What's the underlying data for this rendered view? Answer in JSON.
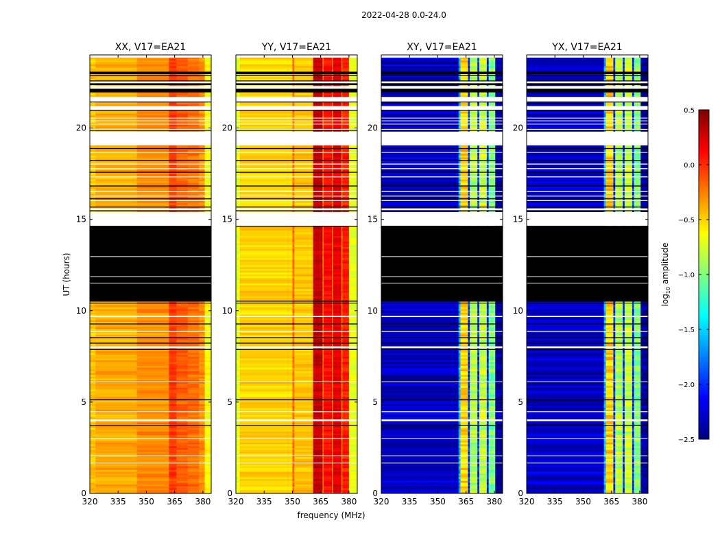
{
  "chart_data": {
    "type": "heatmap",
    "title": "2022-04-28 0.0-24.0",
    "xlabel": "frequency (MHz)",
    "ylabel": "UT (hours)",
    "xlim": [
      320,
      384.4
    ],
    "ylim": [
      0,
      24
    ],
    "xticks": [
      320,
      335,
      350,
      365,
      380
    ],
    "xtick_labels": [
      "320",
      "335",
      "350",
      "365",
      "380"
    ],
    "yticks": [
      0,
      5,
      10,
      15,
      20
    ],
    "ytick_labels": [
      "0",
      "5",
      "10",
      "15",
      "20"
    ],
    "colorbar": {
      "label_prefix": "log",
      "label_subscript": "10",
      "label_suffix": " amplitude",
      "range": [
        -2.5,
        0.5
      ],
      "colormap": "jet",
      "ticks": [
        0.5,
        0.0,
        -0.5,
        -1.0,
        -1.5,
        -2.0,
        -2.5
      ],
      "tick_labels": [
        "0.5",
        "0.0",
        "−0.5",
        "−1.0",
        "−1.5",
        "−2.0",
        "−2.5"
      ]
    },
    "time_mask": {
      "flagged": [
        [
          22.95,
          23.08
        ],
        [
          22.85,
          22.9
        ],
        [
          22.55,
          22.6
        ],
        [
          22.35,
          22.45
        ],
        [
          21.95,
          22.15
        ],
        [
          21.4,
          21.45
        ],
        [
          20.95,
          21.0
        ],
        [
          19.85,
          19.9
        ],
        [
          18.85,
          18.9
        ],
        [
          18.2,
          18.25
        ],
        [
          17.55,
          17.6
        ],
        [
          16.8,
          16.85
        ],
        [
          16.1,
          16.15
        ],
        [
          15.65,
          15.7
        ],
        [
          15.45,
          15.5
        ],
        [
          14.6,
          14.65
        ],
        [
          10.5,
          10.55
        ],
        [
          10.4,
          10.43
        ],
        [
          9.25,
          9.3
        ],
        [
          8.5,
          8.55
        ],
        [
          8.2,
          8.25
        ],
        [
          7.85,
          7.9
        ],
        [
          5.1,
          5.15
        ],
        [
          3.7,
          3.75
        ]
      ],
      "nodata": [
        [
          23.85,
          24
        ],
        [
          22.45,
          22.55
        ],
        [
          22.15,
          22.3
        ],
        [
          21.45,
          21.7
        ],
        [
          21.0,
          21.2
        ],
        [
          20.2,
          20.23
        ],
        [
          20.38,
          20.41
        ],
        [
          20.53,
          20.56
        ],
        [
          19.9,
          19.95
        ],
        [
          19.05,
          19.8
        ],
        [
          18.65,
          18.68
        ],
        [
          18.0,
          18.05
        ],
        [
          17.75,
          17.8
        ],
        [
          17.3,
          17.35
        ],
        [
          16.5,
          16.55
        ],
        [
          16.25,
          16.3
        ],
        [
          16.0,
          16.05
        ],
        [
          15.5,
          15.6
        ],
        [
          14.65,
          15.4
        ],
        [
          9.65,
          9.72
        ],
        [
          8.85,
          8.9
        ],
        [
          7.95,
          8.05
        ],
        [
          6.1,
          6.13
        ],
        [
          4.45,
          4.5
        ],
        [
          3.95,
          4.05
        ],
        [
          3.0,
          3.03
        ],
        [
          2.05,
          2.08
        ],
        [
          1.65,
          1.68
        ]
      ]
    },
    "panels": [
      {
        "title": "XX, V17=EA21",
        "noise": 0.15,
        "flagged_extra": [
          [
            10.55,
            14.6
          ]
        ],
        "spectrum": [
          [
            320,
            323,
            -0.45
          ],
          [
            323,
            345,
            -0.38
          ],
          [
            345,
            362,
            -0.3
          ],
          [
            362,
            366,
            -0.05
          ],
          [
            366,
            372,
            -0.15
          ],
          [
            372,
            378,
            -0.2
          ],
          [
            378,
            381,
            -0.3
          ],
          [
            381,
            384.4,
            -0.65
          ]
        ]
      },
      {
        "title": "YY, V17=EA21",
        "noise": 0.15,
        "flagged_extra": [],
        "spectrum": [
          [
            320,
            322,
            -0.7
          ],
          [
            322,
            350,
            -0.5
          ],
          [
            350,
            351,
            -0.2
          ],
          [
            351,
            361,
            -0.45
          ],
          [
            361,
            366,
            0.3
          ],
          [
            366,
            366.5,
            -0.3
          ],
          [
            366.5,
            371,
            0.1
          ],
          [
            371,
            371.5,
            -0.3
          ],
          [
            371.5,
            376,
            0.2
          ],
          [
            376,
            376.5,
            -0.3
          ],
          [
            376.5,
            380,
            0.05
          ],
          [
            380,
            384.4,
            -0.7
          ]
        ]
      },
      {
        "title": "XY, V17=EA21",
        "noise": 0.3,
        "flagged_extra": [
          [
            10.55,
            14.6
          ]
        ],
        "spectrum": [
          [
            320,
            361,
            -2.3
          ],
          [
            361,
            362,
            -1.6
          ],
          [
            362,
            366,
            -0.5
          ],
          [
            366,
            367,
            -2.0
          ],
          [
            367,
            371,
            -0.85
          ],
          [
            371,
            372,
            -2.0
          ],
          [
            372,
            376,
            -0.8
          ],
          [
            376,
            377,
            -2.0
          ],
          [
            377,
            380.5,
            -1.0
          ],
          [
            380.5,
            384.4,
            -2.45
          ]
        ]
      },
      {
        "title": "YX, V17=EA21",
        "noise": 0.3,
        "flagged_extra": [
          [
            10.55,
            14.6
          ]
        ],
        "spectrum": [
          [
            320,
            361,
            -2.3
          ],
          [
            361,
            362,
            -1.6
          ],
          [
            362,
            366,
            -0.5
          ],
          [
            366,
            367,
            -2.0
          ],
          [
            367,
            371,
            -0.85
          ],
          [
            371,
            372,
            -2.0
          ],
          [
            372,
            376,
            -0.8
          ],
          [
            376,
            377,
            -2.0
          ],
          [
            377,
            380.5,
            -1.0
          ],
          [
            380.5,
            384.4,
            -2.45
          ]
        ]
      }
    ]
  }
}
